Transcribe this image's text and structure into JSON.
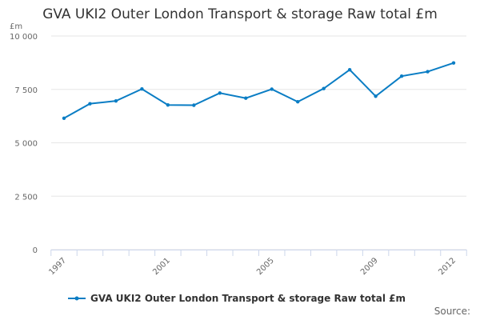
{
  "chart_data": {
    "type": "line",
    "title": "GVA UKI2 Outer London Transport & storage Raw total £m",
    "ylabel": "£m",
    "xlabel": "",
    "ylim": [
      0,
      10000
    ],
    "yticks": [
      0,
      2500,
      5000,
      7500,
      10000
    ],
    "ytick_labels": [
      "0",
      "2 500",
      "5 000",
      "7 500",
      "10 000"
    ],
    "xticks_labeled": [
      "1997",
      "2001",
      "2005",
      "2009",
      "2012"
    ],
    "x": [
      1997,
      1998,
      1999,
      2000,
      2001,
      2002,
      2003,
      2004,
      2005,
      2006,
      2007,
      2008,
      2009,
      2010,
      2011,
      2012
    ],
    "series": [
      {
        "name": "GVA UKI2 Outer London Transport & storage Raw total £m",
        "values": [
          6150,
          6830,
          6960,
          7520,
          6770,
          6760,
          7330,
          7090,
          7510,
          6920,
          7540,
          8420,
          7180,
          8120,
          8330,
          8740
        ],
        "color": "#0a7dc4"
      }
    ],
    "grid": true,
    "legend_position": "bottom"
  },
  "source_label": "Source:"
}
